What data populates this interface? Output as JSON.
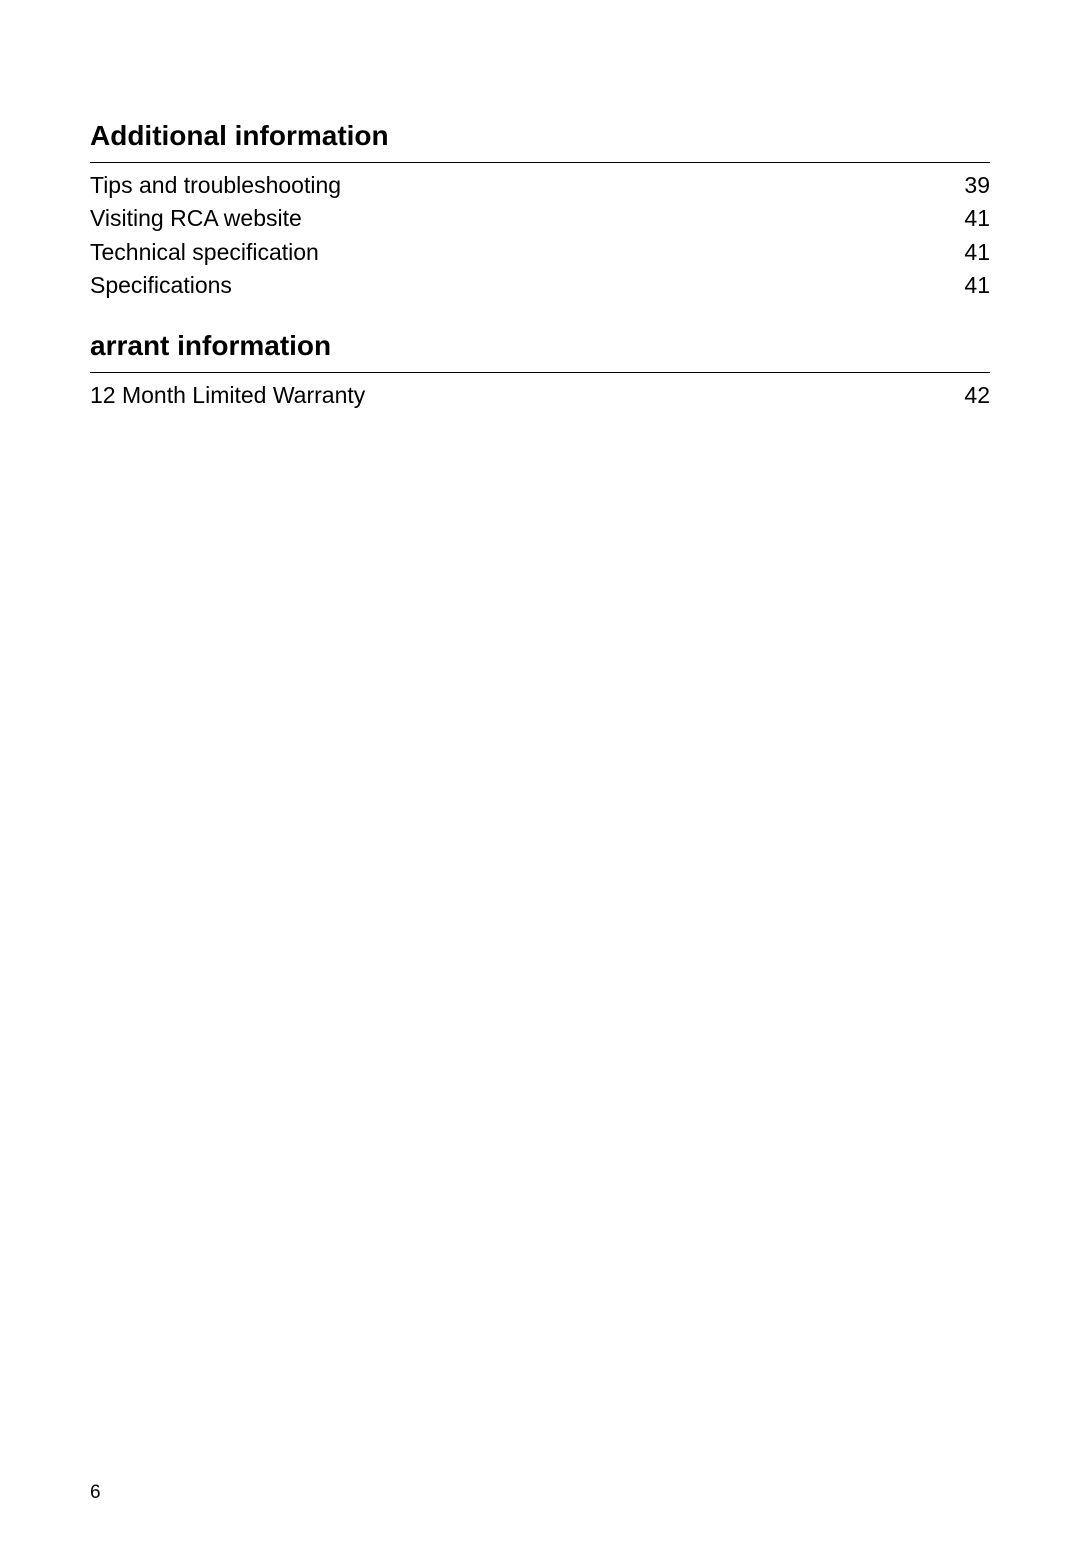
{
  "sections": [
    {
      "heading": "Additional information",
      "entries": [
        {
          "label": "Tips and troubleshooting",
          "page": "39"
        },
        {
          "label": "Visiting RCA website",
          "page": "41"
        },
        {
          "label": "Technical specification",
          "page": "41"
        },
        {
          "label": "Specifications",
          "page": "41"
        }
      ]
    },
    {
      "heading": "arrant information",
      "entries": [
        {
          "label": "12 Month Limited Warranty",
          "page": "42"
        }
      ]
    }
  ],
  "page_number": "6",
  "colors": {
    "text": "#000000",
    "background": "#ffffff",
    "underline": "#000000"
  },
  "typography": {
    "heading_fontsize": 28,
    "heading_weight": "bold",
    "entry_fontsize": 23,
    "pagenum_fontsize": 19
  }
}
